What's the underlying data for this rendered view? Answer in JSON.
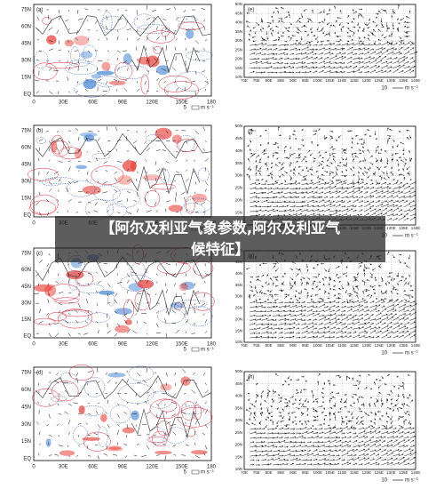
{
  "banner": {
    "line1": "【阿尔及利亚气象参数,阿尔及利亚气",
    "line2": "候特征】"
  },
  "map_axes": {
    "y_labels": [
      "75N",
      "60N",
      "45N",
      "30N",
      "15N",
      "EQ"
    ],
    "x_labels": [
      "0",
      "30E",
      "60E",
      "90E",
      "120E",
      "150E",
      "180"
    ],
    "scale_value": "5",
    "scale_unit": "m s⁻¹"
  },
  "wind_axes": {
    "y_labels": [
      "50N",
      "45N",
      "40N",
      "35N",
      "30N",
      "25N",
      "20N",
      "15N",
      "10N"
    ],
    "x_labels": [
      "70E",
      "75E",
      "80E",
      "85E",
      "90E",
      "95E",
      "100E",
      "105E",
      "110E",
      "115E",
      "120E",
      "125E",
      "130E",
      "135E",
      "140E"
    ],
    "scale_value": "10",
    "scale_unit": "m s⁻¹"
  },
  "left_panels": [
    {
      "label": "(a)"
    },
    {
      "label": "(b)"
    },
    {
      "label": "(c)"
    },
    {
      "label": "(d)"
    }
  ],
  "right_panels": [
    {
      "label": "(e)"
    },
    {
      "label": "(f)"
    },
    {
      "label": "(g)"
    },
    {
      "label": "(h)"
    }
  ]
}
